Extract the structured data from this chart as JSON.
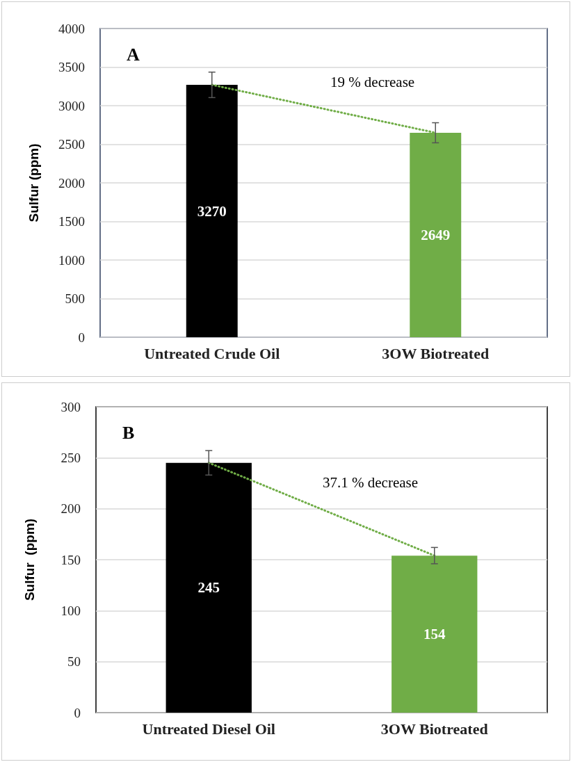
{
  "chart_data": [
    {
      "type": "bar",
      "title": "A",
      "ylabel": "Sulfur (ppm)",
      "categories": [
        "Untreated Crude Oil",
        "3OW Biotreated"
      ],
      "series": [
        {
          "values": [
            3270,
            2649
          ],
          "colors": [
            "#000000",
            "#70ad47"
          ],
          "errors": [
            165,
            130
          ]
        },
        {
          "type": "line",
          "values": [
            3270,
            2649
          ],
          "value_labels": [
            null,
            null
          ],
          "color": "#70ad47",
          "line_style": "dotted",
          "marker": "none"
        }
      ],
      "annotations": [
        "19 % decrease"
      ],
      "data_labels": true,
      "ylim": [
        0,
        4000
      ],
      "yticks": [
        0,
        500,
        1000,
        1500,
        2000,
        2500,
        3000,
        3500,
        4000
      ],
      "grid": "y"
    },
    {
      "type": "bar",
      "title": "B",
      "ylabel": "Sulfur  (ppm)",
      "categories": [
        "Untreated Diesel Oil",
        "3OW Biotreated"
      ],
      "series": [
        {
          "values": [
            245,
            154
          ],
          "colors": [
            "#000000",
            "#70ad47"
          ],
          "errors": [
            12,
            8
          ]
        },
        {
          "type": "line",
          "values": [
            245,
            154
          ],
          "value_labels": [
            null,
            null
          ],
          "color": "#70ad47",
          "line_style": "dotted",
          "marker": "none"
        }
      ],
      "annotations": [
        "37.1 % decrease"
      ],
      "data_labels": true,
      "ylim": [
        0,
        300
      ],
      "yticks": [
        0,
        50,
        100,
        150,
        200,
        250,
        300
      ],
      "grid": "y"
    }
  ]
}
